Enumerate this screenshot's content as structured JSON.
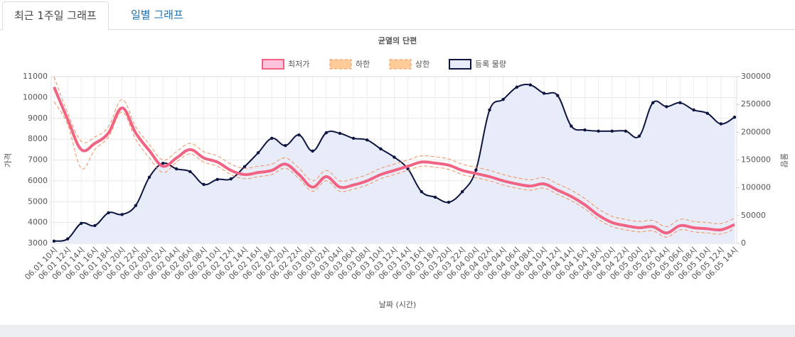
{
  "tabs": [
    "최근 1주일 그래프",
    "일별 그래프"
  ],
  "chart_data": {
    "type": "line",
    "title": "균열의 단편",
    "x_label": "날짜 (시간)",
    "y_label": "가격",
    "y2_label": "물량",
    "legend": "top",
    "grid": true,
    "categories": [
      "06.01 10시",
      "06.01 12시",
      "06.01 14시",
      "06.01 16시",
      "06.01 18시",
      "06.01 20시",
      "06.01 22시",
      "06.02 00시",
      "06.02 02시",
      "06.02 04시",
      "06.02 06시",
      "06.02 08시",
      "06.02 10시",
      "06.02 12시",
      "06.02 14시",
      "06.02 16시",
      "06.02 18시",
      "06.02 20시",
      "06.02 22시",
      "06.03 00시",
      "06.03 02시",
      "06.03 04시",
      "06.03 06시",
      "06.03 08시",
      "06.03 10시",
      "06.03 12시",
      "06.03 14시",
      "06.03 16시",
      "06.03 18시",
      "06.03 20시",
      "06.03 22시",
      "06.04 00시",
      "06.04 02시",
      "06.04 04시",
      "06.04 06시",
      "06.04 08시",
      "06.04 10시",
      "06.04 12시",
      "06.04 14시",
      "06.04 16시",
      "06.04 18시",
      "06.04 20시",
      "06.04 22시",
      "06.05 00시",
      "06.05 02시",
      "06.05 04시",
      "06.05 06시",
      "06.05 08시",
      "06.05 10시",
      "06.05 12시",
      "06.05 14시"
    ],
    "ylim": [
      3000,
      11000
    ],
    "yticks": [
      3000,
      4000,
      5000,
      6000,
      7000,
      8000,
      9000,
      10000,
      11000
    ],
    "y2lim": [
      0,
      300000
    ],
    "y2ticks": [
      0,
      50000,
      100000,
      150000,
      200000,
      250000,
      300000
    ],
    "series": [
      {
        "name": "최저가",
        "color": "#f06383",
        "legend_fill": "#ffc2dc",
        "width": 4,
        "values": [
          10500,
          8950,
          7500,
          7800,
          8300,
          9500,
          8300,
          7450,
          6700,
          7100,
          7500,
          7100,
          6900,
          6500,
          6300,
          6400,
          6500,
          6800,
          6300,
          5700,
          6200,
          5700,
          5800,
          6000,
          6300,
          6500,
          6700,
          6900,
          6850,
          6750,
          6500,
          6350,
          6200,
          6000,
          5850,
          5750,
          5850,
          5550,
          5250,
          4850,
          4350,
          4000,
          3850,
          3750,
          3800,
          3500,
          3850,
          3750,
          3700,
          3650,
          3900
        ]
      },
      {
        "name": "하한",
        "color": "#f0905a",
        "legend_fill": "#ffcc99",
        "width": 1,
        "dashed": true,
        "values": [
          9800,
          8700,
          6600,
          7500,
          8100,
          9300,
          8000,
          7100,
          6400,
          6900,
          7300,
          6900,
          6700,
          6300,
          6100,
          6200,
          6300,
          6600,
          6100,
          5500,
          6000,
          5500,
          5600,
          5800,
          6100,
          6300,
          6500,
          6700,
          6650,
          6550,
          6300,
          6150,
          6000,
          5800,
          5650,
          5550,
          5650,
          5350,
          5050,
          4650,
          4150,
          3800,
          3650,
          3550,
          3600,
          3300,
          3650,
          3550,
          3500,
          3450,
          3700
        ]
      },
      {
        "name": "상한",
        "color": "#f0905a",
        "legend_fill": "#ffcc99",
        "width": 1,
        "dashed": true,
        "values": [
          11000,
          9250,
          7900,
          8100,
          8600,
          9900,
          8600,
          7750,
          7000,
          7400,
          7800,
          7400,
          7200,
          6800,
          6600,
          6700,
          6800,
          7100,
          6600,
          6000,
          6500,
          6000,
          6100,
          6300,
          6600,
          6800,
          7000,
          7200,
          7150,
          7050,
          6800,
          6650,
          6500,
          6300,
          6150,
          6050,
          6150,
          5850,
          5550,
          5150,
          4650,
          4300,
          4150,
          4050,
          4100,
          3800,
          4150,
          4050,
          4000,
          3950,
          4200
        ]
      },
      {
        "name": "등록 물량",
        "color": "#0d1540",
        "legend_fill": "#e8ecf8",
        "fill": "#e8ecf8",
        "width": 2,
        "markers": true,
        "axis": "y2",
        "values": [
          4000,
          8000,
          36000,
          32000,
          55000,
          52000,
          68000,
          119000,
          144000,
          134000,
          129000,
          106000,
          115000,
          116000,
          138000,
          163000,
          189000,
          176000,
          195000,
          166000,
          199000,
          198000,
          189000,
          186000,
          170000,
          155000,
          134000,
          93000,
          83000,
          74000,
          93000,
          132000,
          240000,
          259000,
          281000,
          285000,
          270000,
          266000,
          211000,
          204000,
          202000,
          202000,
          202000,
          193000,
          253000,
          246000,
          253000,
          240000,
          234000,
          215000,
          227000
        ]
      }
    ]
  }
}
